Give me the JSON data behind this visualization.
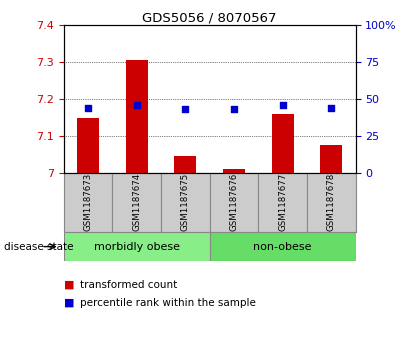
{
  "title": "GDS5056 / 8070567",
  "samples": [
    "GSM1187673",
    "GSM1187674",
    "GSM1187675",
    "GSM1187676",
    "GSM1187677",
    "GSM1187678"
  ],
  "bar_values": [
    7.15,
    7.305,
    7.045,
    7.01,
    7.16,
    7.075
  ],
  "bar_base": 7.0,
  "percentile_values": [
    44,
    46,
    43,
    43,
    46,
    44
  ],
  "left_ylim": [
    7.0,
    7.4
  ],
  "left_yticks": [
    7.0,
    7.1,
    7.2,
    7.3,
    7.4
  ],
  "right_yticks": [
    0,
    25,
    50,
    75,
    100
  ],
  "bar_color": "#cc0000",
  "dot_color": "#0000cc",
  "group_labels": [
    "morbidly obese",
    "non-obese"
  ],
  "group_colors": [
    "#88ee88",
    "#66dd66"
  ],
  "group_ranges": [
    [
      0,
      3
    ],
    [
      3,
      6
    ]
  ],
  "disease_state_label": "disease state",
  "legend_bar_label": "transformed count",
  "legend_dot_label": "percentile rank within the sample",
  "tick_label_color_left": "#cc0000",
  "tick_label_color_right": "#0000cc",
  "sample_box_color": "#cccccc",
  "sample_box_edge": "#888888"
}
